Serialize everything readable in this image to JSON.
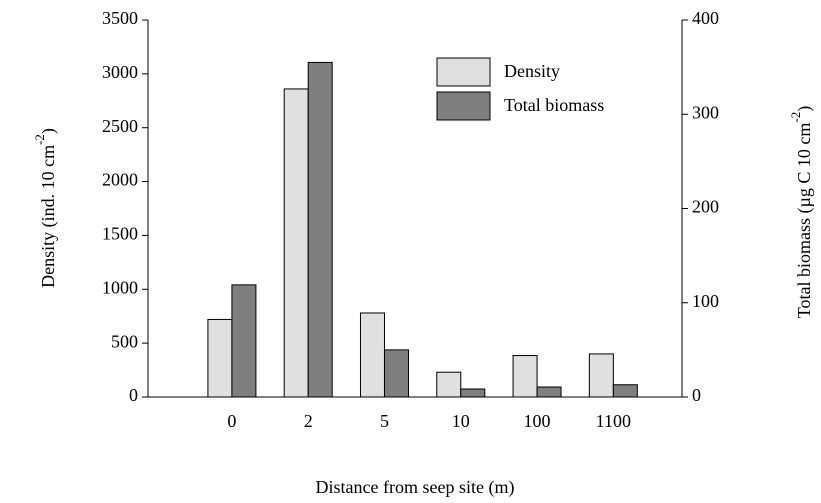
{
  "chart_data": {
    "type": "bar",
    "xlabel": "Distance from seep site (m)",
    "ylabel": [
      "Density (ind. 10 cm",
      "-2",
      ")"
    ],
    "y2label": [
      "Total biomass (µg C 10 cm",
      "-2",
      ")"
    ],
    "categories": [
      "0",
      "2",
      "5",
      "10",
      "100",
      "1100"
    ],
    "series": [
      {
        "name": "Density",
        "color": "#e0e0e0",
        "values": [
          720,
          2860,
          780,
          230,
          385,
          400
        ]
      },
      {
        "name": "Total biomass",
        "color": "#7f7f7f",
        "axis": "y2",
        "values": [
          119,
          355,
          50,
          8.5,
          10.6,
          13
        ]
      }
    ],
    "ylim": [
      0,
      3500
    ],
    "yticks": [
      0,
      500,
      1000,
      1500,
      2000,
      2500,
      3000,
      3500
    ],
    "y2lim": [
      0,
      400
    ],
    "y2ticks": [
      0,
      100,
      200,
      300,
      400
    ],
    "legend": "upper right"
  }
}
